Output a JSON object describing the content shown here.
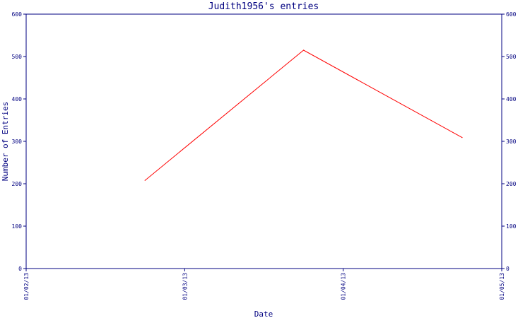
{
  "chart_data": {
    "type": "line",
    "title": "Judith1956's entries",
    "xlabel": "Date",
    "ylabel": "Number of Entries",
    "x_ticks": [
      "01/02/13",
      "01/03/13",
      "01/04/13",
      "01/05/13"
    ],
    "y_ticks": [
      "0",
      "100",
      "200",
      "300",
      "400",
      "500",
      "600"
    ],
    "ylim": [
      0,
      600
    ],
    "xlim": [
      "2013-01-02",
      "2013-01-05"
    ],
    "series": [
      {
        "x": [
          "2013-01-02 18:00",
          "2013-01-03 18:00",
          "2013-01-04 18:00"
        ],
        "values": [
          208,
          515,
          309
        ]
      }
    ],
    "grid": false,
    "colors": {
      "axis": "#000080",
      "line": "#ff0000",
      "text": "#000080"
    }
  }
}
